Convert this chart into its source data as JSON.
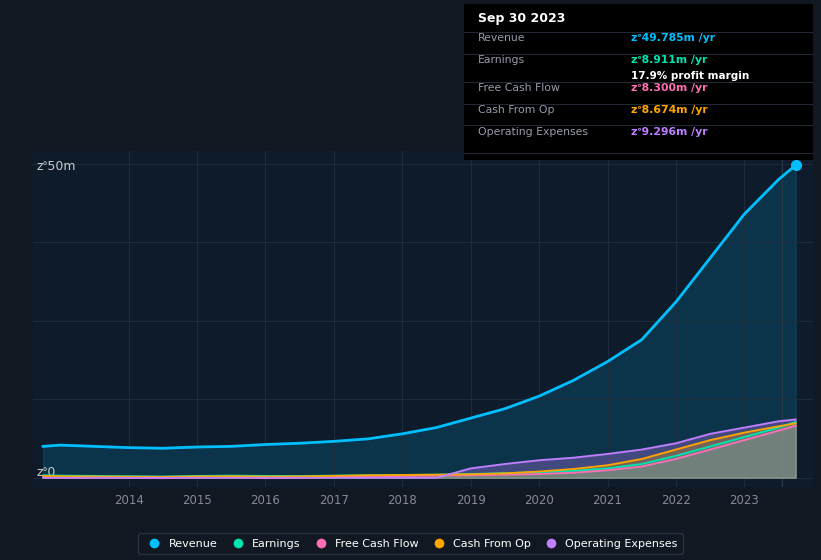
{
  "bg_color": "#111822",
  "plot_bg_color": "#0d1b2a",
  "grid_color": "#1e2d3d",
  "title_text": "Sep 30 2023",
  "tooltip_revenue_label": "Revenue",
  "tooltip_revenue_value": "zᐤ49.785m /yr",
  "tooltip_revenue_color": "#00bfff",
  "tooltip_earnings_label": "Earnings",
  "tooltip_earnings_value": "zᐤ8.911m /yr",
  "tooltip_earnings_color": "#00e5b0",
  "tooltip_margin": "17.9% profit margin",
  "tooltip_fcf_label": "Free Cash Flow",
  "tooltip_fcf_value": "zᐤ8.300m /yr",
  "tooltip_fcf_color": "#ff6eb4",
  "tooltip_cfop_label": "Cash From Op",
  "tooltip_cfop_value": "zᐤ8.674m /yr",
  "tooltip_cfop_color": "#ffa500",
  "tooltip_opex_label": "Operating Expenses",
  "tooltip_opex_value": "zᐤ9.296m /yr",
  "tooltip_opex_color": "#bf7fff",
  "ylabel_top": "zᐤ50m",
  "ylabel_bottom": "zᐤ0",
  "x_years": [
    2012.75,
    2013.0,
    2013.5,
    2014.0,
    2014.5,
    2015.0,
    2015.5,
    2016.0,
    2016.5,
    2017.0,
    2017.5,
    2018.0,
    2018.5,
    2019.0,
    2019.5,
    2020.0,
    2020.5,
    2021.0,
    2021.5,
    2022.0,
    2022.5,
    2023.0,
    2023.5,
    2023.75
  ],
  "revenue": [
    5.0,
    5.2,
    5.0,
    4.8,
    4.7,
    4.9,
    5.0,
    5.3,
    5.5,
    5.8,
    6.2,
    7.0,
    8.0,
    9.5,
    11.0,
    13.0,
    15.5,
    18.5,
    22.0,
    28.0,
    35.0,
    42.0,
    47.5,
    49.785
  ],
  "earnings": [
    0.4,
    0.35,
    0.3,
    0.25,
    0.2,
    0.3,
    0.35,
    0.3,
    0.28,
    0.35,
    0.4,
    0.45,
    0.5,
    0.6,
    0.75,
    0.9,
    1.1,
    1.5,
    2.2,
    3.5,
    5.0,
    6.5,
    8.0,
    8.911
  ],
  "free_cash_flow": [
    0.1,
    0.05,
    0.02,
    0.0,
    -0.05,
    0.05,
    0.1,
    -0.05,
    0.0,
    0.15,
    0.25,
    0.3,
    0.35,
    0.4,
    0.5,
    0.6,
    0.8,
    1.2,
    1.8,
    3.0,
    4.5,
    6.0,
    7.5,
    8.3
  ],
  "cash_from_op": [
    0.3,
    0.25,
    0.2,
    0.18,
    0.15,
    0.22,
    0.25,
    0.2,
    0.22,
    0.3,
    0.4,
    0.45,
    0.5,
    0.55,
    0.7,
    1.0,
    1.4,
    2.0,
    3.0,
    4.5,
    6.0,
    7.2,
    8.2,
    8.674
  ],
  "op_expenses": [
    0.0,
    0.0,
    0.0,
    0.0,
    0.0,
    0.0,
    0.0,
    0.0,
    0.0,
    0.0,
    0.0,
    0.0,
    0.0,
    1.5,
    2.2,
    2.8,
    3.2,
    3.8,
    4.5,
    5.5,
    7.0,
    8.0,
    9.0,
    9.296
  ],
  "revenue_color": "#00bfff",
  "earnings_color": "#00e5b0",
  "fcf_color": "#ff6eb4",
  "cfop_color": "#ffa500",
  "opex_color": "#bf7fff",
  "legend_labels": [
    "Revenue",
    "Earnings",
    "Free Cash Flow",
    "Cash From Op",
    "Operating Expenses"
  ],
  "legend_colors": [
    "#00bfff",
    "#00e5b0",
    "#ff6eb4",
    "#ffa500",
    "#bf7fff"
  ],
  "x_tick_labels": [
    "2014",
    "2015",
    "2016",
    "2017",
    "2018",
    "2019",
    "2020",
    "2021",
    "2022",
    "2023"
  ],
  "x_tick_positions": [
    2014,
    2015,
    2016,
    2017,
    2018,
    2019,
    2020,
    2021,
    2022,
    2023
  ],
  "ylim": [
    -1.5,
    52
  ],
  "xlim": [
    2012.6,
    2024.0
  ]
}
